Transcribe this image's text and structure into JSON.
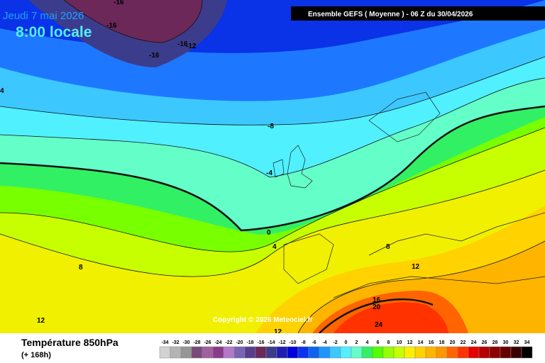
{
  "header": {
    "date": "Jeudi 7 mai 2026",
    "time": "8:00 locale"
  },
  "banner": "Ensemble GEFS  ( Moyenne )  -  06 Z du 30/04/2026",
  "copyright": "Copyright © 2026 Meteociel.fr",
  "contour_labels": [
    -16,
    -16,
    -16,
    -16,
    -12,
    -8,
    -4,
    0,
    4,
    8,
    8,
    12,
    12,
    16,
    20,
    24,
    12,
    4
  ],
  "legend": {
    "title": "Température 850hPa",
    "subtitle": "(+ 168h)",
    "values": [
      -34,
      -32,
      -30,
      -28,
      -26,
      -24,
      -22,
      -20,
      -18,
      -16,
      -14,
      -12,
      -10,
      -8,
      -6,
      -4,
      -2,
      0,
      2,
      4,
      6,
      8,
      10,
      12,
      14,
      16,
      18,
      20,
      22,
      24,
      26,
      28,
      30,
      32,
      34
    ],
    "colors": [
      "#d2d2d2",
      "#b4b4b4",
      "#969696",
      "#7a4a7a",
      "#a060a0",
      "#8a3a8a",
      "#b478c8",
      "#7864b4",
      "#5a3c8c",
      "#6b2858",
      "#3c3c8c",
      "#1e1eb4",
      "#0000dc",
      "#0a32f0",
      "#0a64f0",
      "#1e96ff",
      "#3cc8ff",
      "#50f0ff",
      "#64ffc8",
      "#32f064",
      "#50ff00",
      "#96ff00",
      "#c8ff00",
      "#fff000",
      "#ffd200",
      "#ffb400",
      "#ff9600",
      "#ff6400",
      "#ff3200",
      "#e60000",
      "#b40000",
      "#8c0000",
      "#640000",
      "#3c0000",
      "#000000"
    ]
  }
}
